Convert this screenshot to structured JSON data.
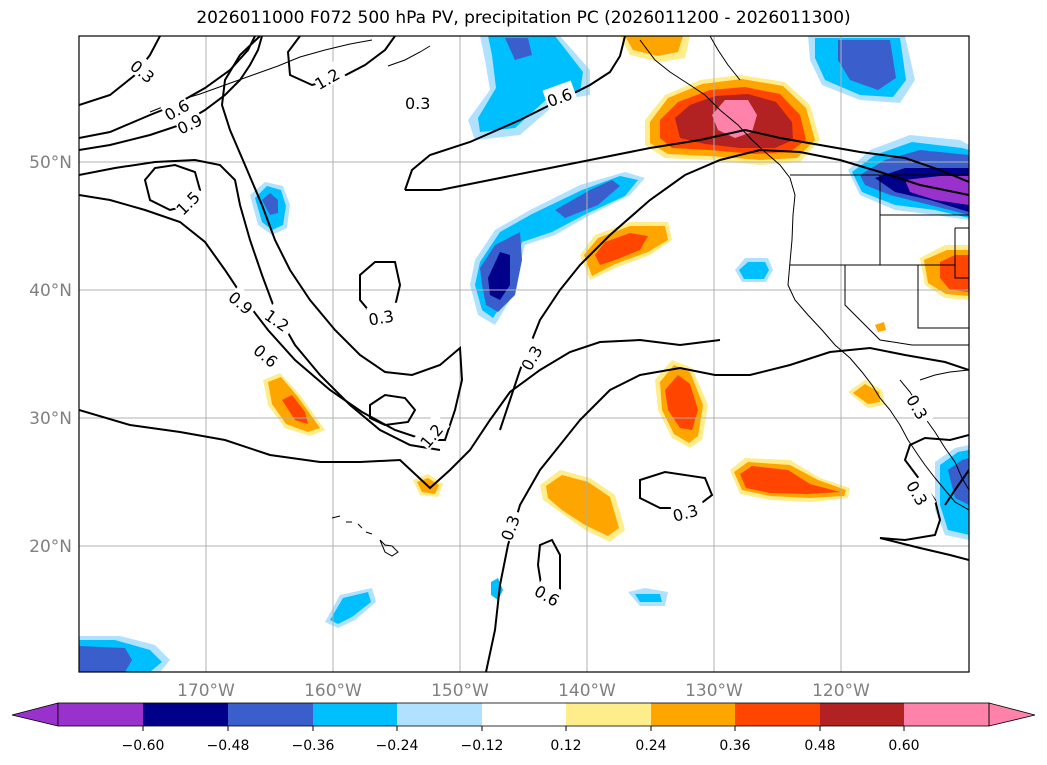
{
  "title": "2026011000 F072 500 hPa PV, precipitation PC (2026011200 - 2026011300)",
  "map": {
    "lat_labels": [
      "50°N",
      "40°N",
      "30°N",
      "20°N"
    ],
    "lon_labels": [
      "170°W",
      "160°W",
      "150°W",
      "140°W",
      "130°W",
      "120°W"
    ],
    "gridlines": true,
    "projection": "PlateCarree"
  },
  "colorbar": {
    "ticks": [
      "−0.60",
      "−0.48",
      "−0.36",
      "−0.24",
      "−0.12",
      "0.12",
      "0.24",
      "0.36",
      "0.48",
      "0.60"
    ],
    "colors": [
      "#9932cc",
      "#00008b",
      "#3a5fcd",
      "#00bfff",
      "#b0e2ff",
      "#ffffff",
      "#ffec8b",
      "#ffa500",
      "#ff4500",
      "#b22222",
      "#ff82ab"
    ],
    "extend": "both"
  },
  "contour_labels": [
    "0.3",
    "0.6",
    "0.9",
    "1.2",
    "1.5"
  ],
  "legend_colors": {
    "purple": "#9932cc",
    "navy": "#00008b",
    "blue": "#3a5fcd",
    "sky": "#00bfff",
    "lightsky": "#b0e2ff",
    "lightyellow": "#ffec8b",
    "orange": "#ffa500",
    "orangered": "#ff4500",
    "firebrick": "#b22222",
    "pink": "#ff82ab"
  }
}
